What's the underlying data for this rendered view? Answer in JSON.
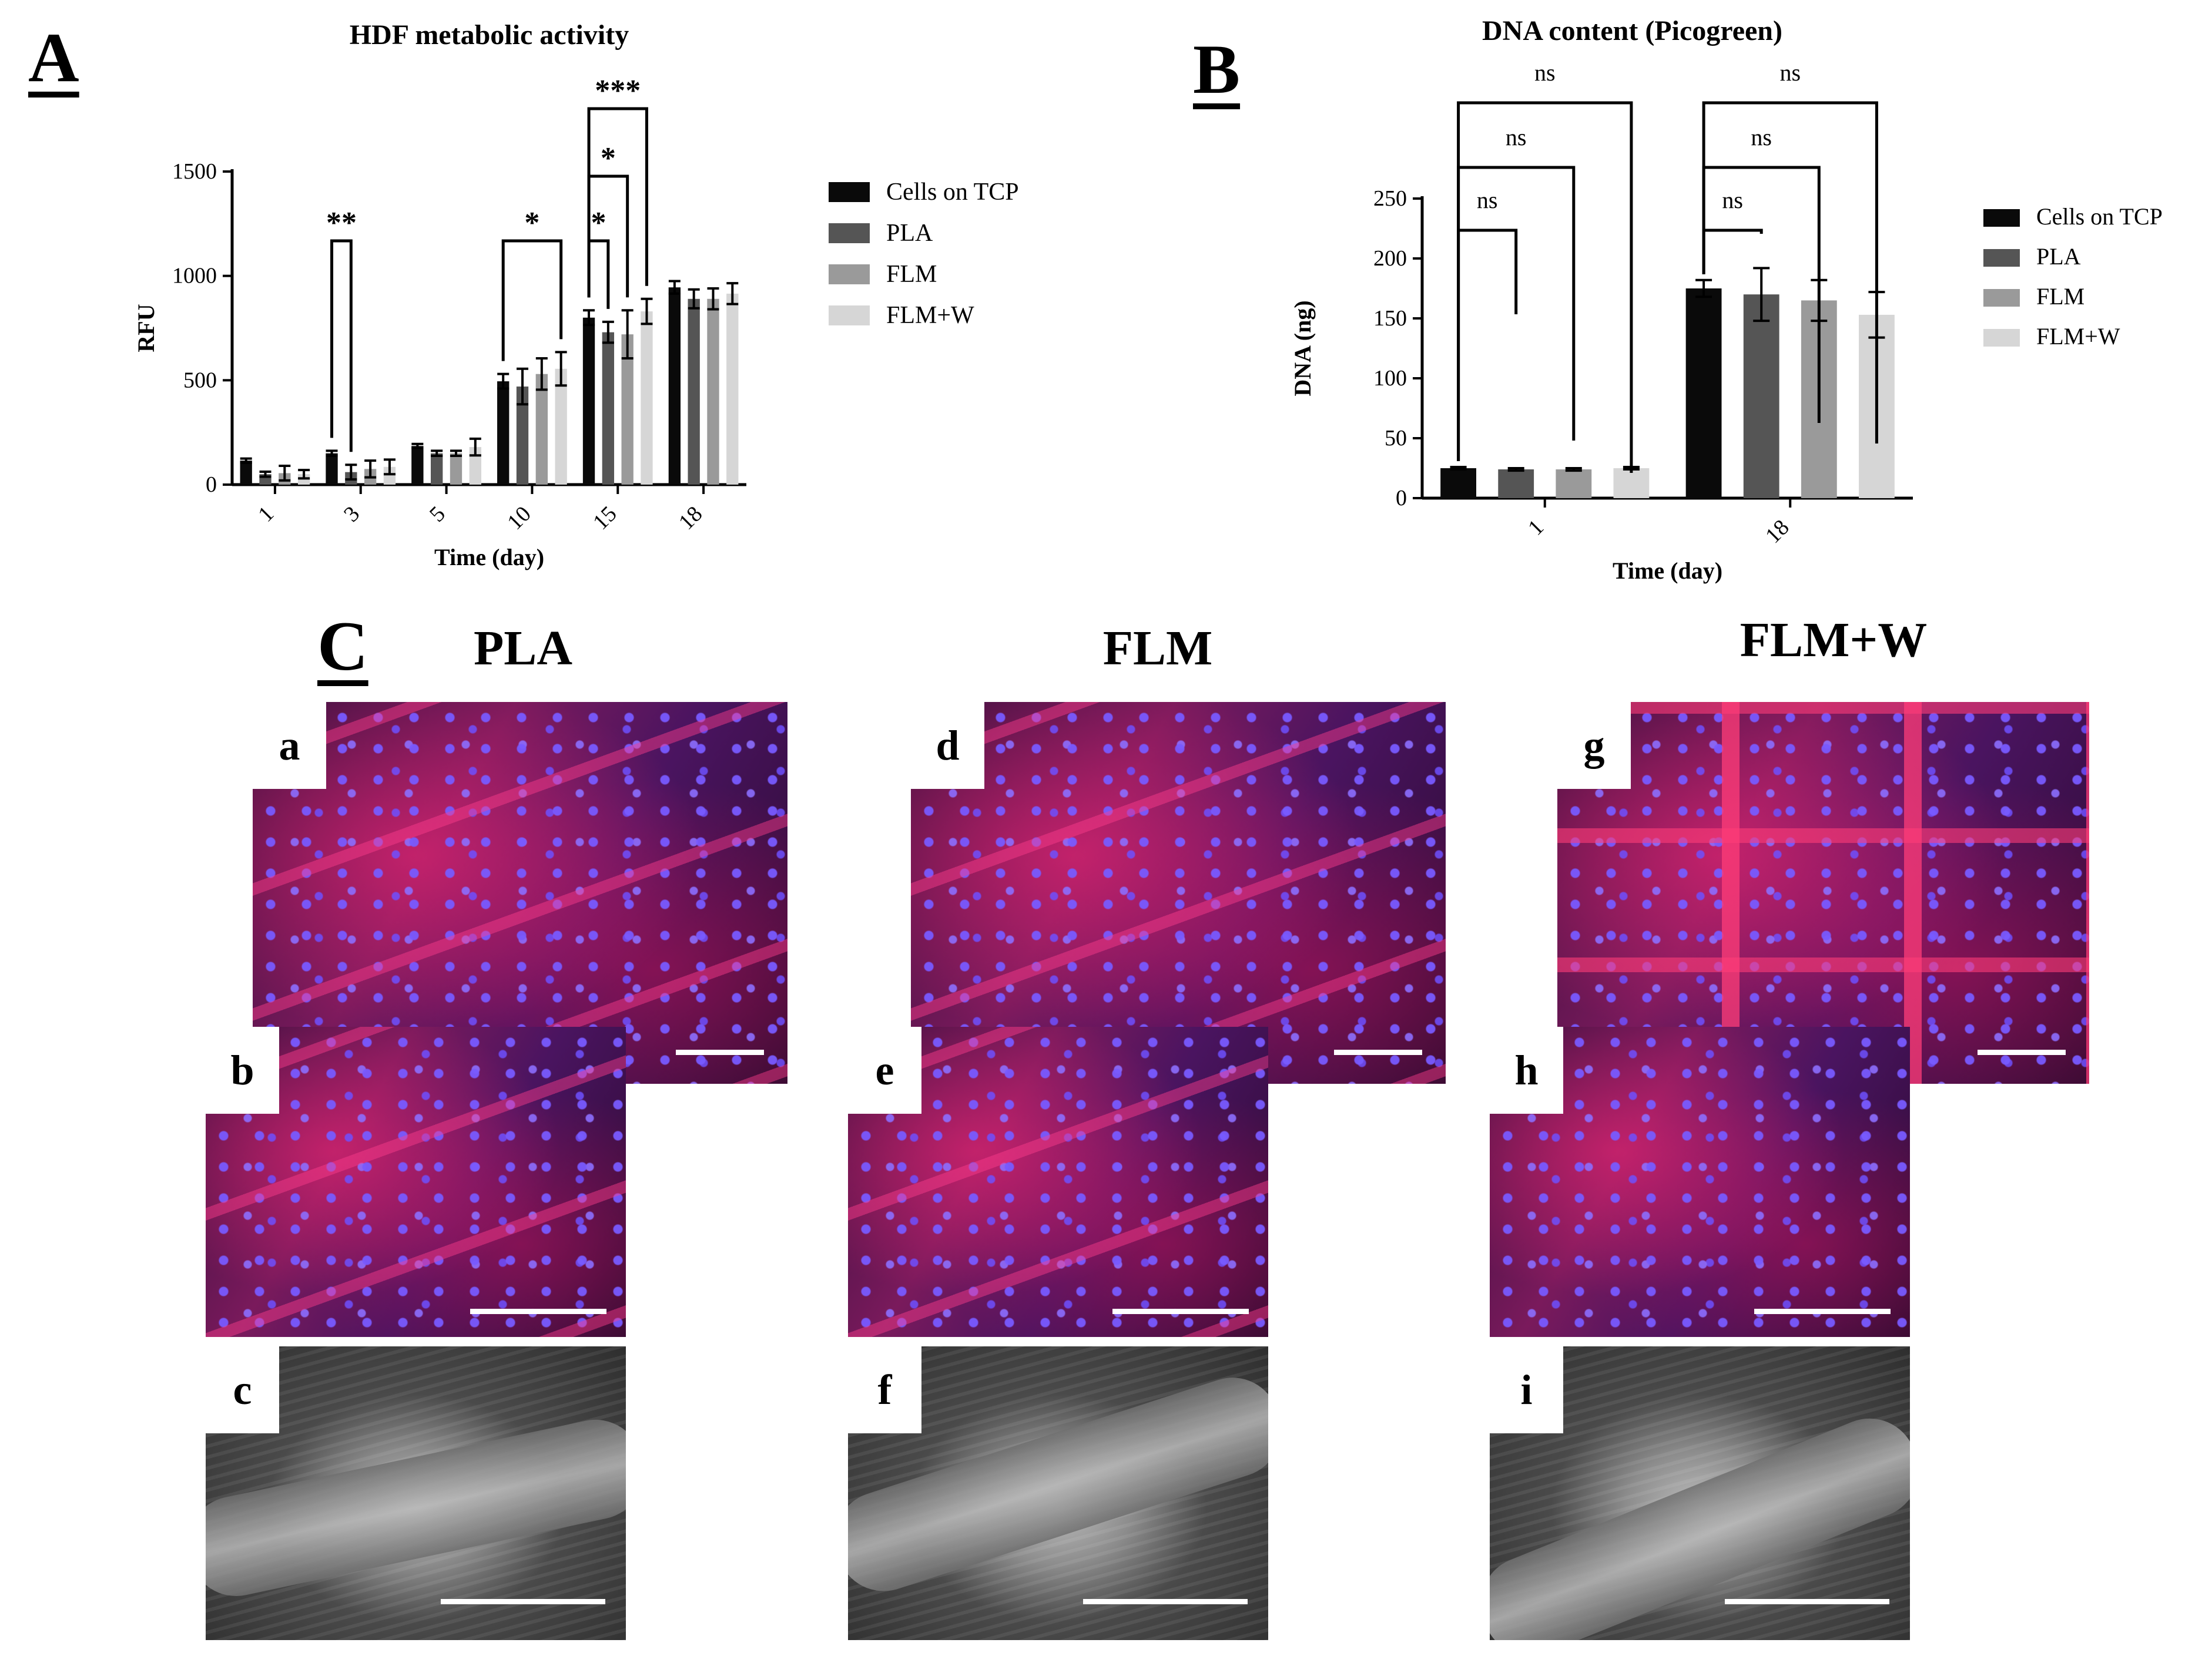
{
  "panels": {
    "A": "A",
    "B": "B",
    "C": "C"
  },
  "chart_data": [
    {
      "type": "bar",
      "title": "HDF metabolic activity",
      "xlabel": "Time (day)",
      "ylabel": "RFU",
      "categories": [
        "1",
        "3",
        "5",
        "10",
        "15",
        "18"
      ],
      "ylim": [
        0,
        1500
      ],
      "yticks": [
        "0",
        "500",
        "1000",
        "1500"
      ],
      "series": [
        {
          "name": "Cells on TCP",
          "color": "#0a0a0a",
          "values": [
            115,
            150,
            185,
            495,
            800,
            945
          ],
          "errors": [
            10,
            12,
            10,
            35,
            35,
            30
          ]
        },
        {
          "name": "PLA",
          "color": "#555555",
          "values": [
            50,
            60,
            150,
            470,
            730,
            890
          ],
          "errors": [
            12,
            35,
            12,
            85,
            50,
            45
          ]
        },
        {
          "name": "FLM",
          "color": "#9a9a9a",
          "values": [
            55,
            75,
            150,
            530,
            720,
            890
          ],
          "errors": [
            35,
            40,
            12,
            75,
            115,
            50
          ]
        },
        {
          "name": "FLM+W",
          "color": "#d6d6d6",
          "values": [
            50,
            85,
            180,
            555,
            830,
            915
          ],
          "errors": [
            20,
            35,
            40,
            80,
            60,
            50
          ]
        }
      ],
      "significance": [
        {
          "label": "**",
          "category": "3",
          "from": "Cells on TCP",
          "to": "PLA"
        },
        {
          "label": "*",
          "category": "10",
          "from": "Cells on TCP",
          "to": "FLM+W"
        },
        {
          "label": "*",
          "category": "15",
          "from": "Cells on TCP",
          "to": "PLA"
        },
        {
          "label": "*",
          "category": "15",
          "from": "Cells on TCP",
          "to": "FLM"
        },
        {
          "label": "***",
          "category": "15",
          "from": "Cells on TCP",
          "to": "FLM+W"
        }
      ],
      "legend": "right"
    },
    {
      "type": "bar",
      "title": "DNA content (Picogreen)",
      "xlabel": "Time (day)",
      "ylabel": "DNA (ng)",
      "categories": [
        "1",
        "18"
      ],
      "ylim": [
        0,
        250
      ],
      "yticks": [
        "0",
        "50",
        "100",
        "150",
        "200",
        "250"
      ],
      "series": [
        {
          "name": "Cells on TCP",
          "color": "#0a0a0a",
          "values": [
            25,
            175
          ],
          "errors": [
            1,
            7
          ]
        },
        {
          "name": "PLA",
          "color": "#555555",
          "values": [
            24,
            170
          ],
          "errors": [
            1,
            22
          ]
        },
        {
          "name": "FLM",
          "color": "#9a9a9a",
          "values": [
            24,
            165
          ],
          "errors": [
            1,
            17
          ]
        },
        {
          "name": "FLM+W",
          "color": "#d6d6d6",
          "values": [
            25,
            153
          ],
          "errors": [
            1,
            19
          ]
        }
      ],
      "significance": [
        {
          "label": "ns",
          "category": "1",
          "from": "Cells on TCP",
          "to": "PLA"
        },
        {
          "label": "ns",
          "category": "1",
          "from": "Cells on TCP",
          "to": "FLM"
        },
        {
          "label": "ns",
          "category": "1",
          "from": "Cells on TCP",
          "to": "FLM+W"
        },
        {
          "label": "ns",
          "category": "18",
          "from": "Cells on TCP",
          "to": "PLA"
        },
        {
          "label": "ns",
          "category": "18",
          "from": "Cells on TCP",
          "to": "FLM"
        },
        {
          "label": "ns",
          "category": "18",
          "from": "Cells on TCP",
          "to": "FLM+W"
        }
      ],
      "legend": "right"
    }
  ],
  "columns": [
    {
      "title": "PLA",
      "labels": [
        "a",
        "b",
        "c"
      ]
    },
    {
      "title": "FLM",
      "labels": [
        "d",
        "e",
        "f"
      ]
    },
    {
      "title": "FLM+W",
      "labels": [
        "g",
        "h",
        "i"
      ]
    }
  ]
}
